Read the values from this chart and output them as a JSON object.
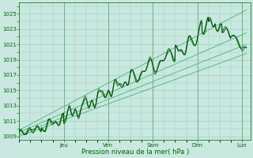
{
  "bg_color": "#c8e8e0",
  "plot_bg_color": "#c8e8e0",
  "grid_color": "#99ccbb",
  "line_color_dark": "#004400",
  "line_color_med": "#006600",
  "line_color_light": "#33aa66",
  "ylim": [
    1008.5,
    1026.5
  ],
  "yticks": [
    1009,
    1011,
    1013,
    1015,
    1017,
    1019,
    1021,
    1023,
    1025
  ],
  "xlabel": "Pression niveau de la mer( hPa )",
  "xlabel_color": "#006600",
  "day_labels": [
    "Jeu",
    "Ven",
    "Sam",
    "Dim",
    "Lun"
  ],
  "day_positions": [
    1,
    2,
    3,
    4,
    5
  ],
  "xlim": [
    0,
    5.2
  ]
}
